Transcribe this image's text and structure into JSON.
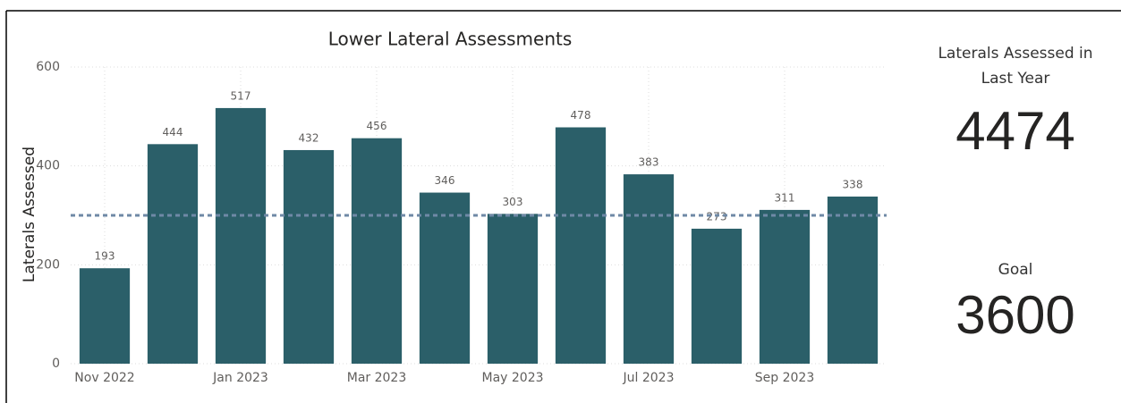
{
  "chart_data": {
    "type": "bar",
    "title": "Lower Lateral Assessments",
    "y_label": "Laterals Assessed",
    "categories": [
      "Nov 2022",
      null,
      "Jan 2023",
      null,
      "Mar 2023",
      null,
      "May 2023",
      null,
      "Jul 2023",
      null,
      "Sep 2023",
      null
    ],
    "values": [
      193,
      444,
      517,
      432,
      456,
      346,
      303,
      478,
      383,
      273,
      311,
      338
    ],
    "color": "#2b5f69",
    "ylim": [
      0,
      600
    ],
    "yticks": [
      0,
      200,
      400,
      600
    ],
    "grid": true,
    "reference_line": 300,
    "reference_color": "#6f89a6"
  },
  "cards": [
    {
      "title": "Laterals Assessed in Last Year",
      "value": "4474"
    },
    {
      "title": "Goal",
      "value": "3600"
    }
  ]
}
